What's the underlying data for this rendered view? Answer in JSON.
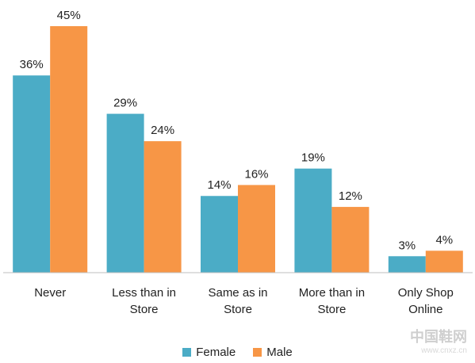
{
  "chart_data": {
    "type": "bar",
    "categories": [
      [
        "Never"
      ],
      [
        "Less than in",
        "Store"
      ],
      [
        "Same as in",
        "Store"
      ],
      [
        "More than in",
        "Store"
      ],
      [
        "Only Shop",
        "Online"
      ]
    ],
    "series": [
      {
        "name": "Female",
        "color": "#4bacc6",
        "values": [
          36,
          29,
          14,
          19,
          3
        ],
        "labels": [
          "36%",
          "29%",
          "14%",
          "19%",
          "3%"
        ]
      },
      {
        "name": "Male",
        "color": "#f79646",
        "values": [
          45,
          24,
          16,
          12,
          4
        ],
        "labels": [
          "45%",
          "24%",
          "16%",
          "12%",
          "4%"
        ]
      }
    ],
    "title": "",
    "xlabel": "",
    "ylabel": "",
    "ylim": [
      0,
      45
    ],
    "grid": false,
    "legend_position": "bottom"
  },
  "legend": {
    "female": "Female",
    "male": "Male"
  },
  "watermark": {
    "main": "中国鞋网",
    "sub": "www.cnxz.cn"
  }
}
